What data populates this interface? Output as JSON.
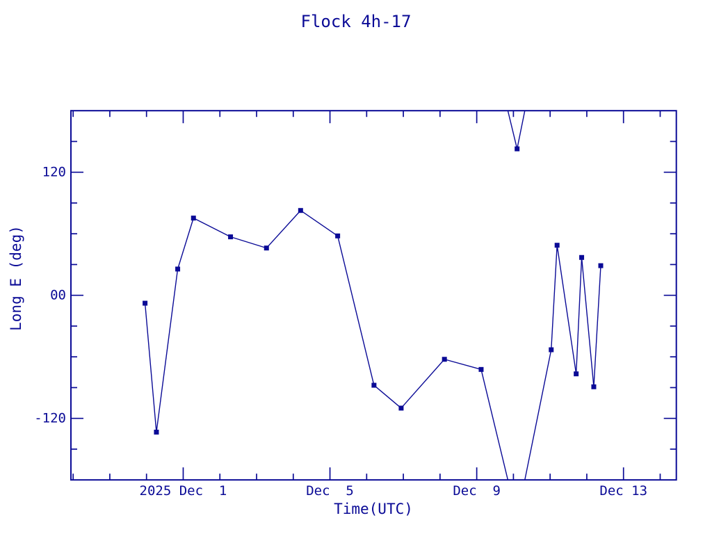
{
  "page": {
    "title": "Flock 4h-17"
  },
  "colors": {
    "ink": "#0A0A96",
    "background": "#FFFFFF"
  },
  "chart_data": {
    "type": "line",
    "title": "Flock 4h-17",
    "xlabel": "Time(UTC)",
    "ylabel": "Long E (deg)",
    "x_axis": {
      "unit": "day of December 2025 (UTC); 0 = Nov 30, -1 = Nov 29",
      "range": [
        -2.06,
        14.44
      ],
      "major_ticks": [
        {
          "day": 1,
          "label": "2025 Dec  1"
        },
        {
          "day": 5,
          "label": "Dec  5"
        },
        {
          "day": 9,
          "label": "Dec  9"
        },
        {
          "day": 13,
          "label": "Dec 13"
        }
      ],
      "minor_tick_step_days": 1
    },
    "y_axis": {
      "unit": "deg",
      "range": [
        -180,
        180
      ],
      "major_ticks": [
        {
          "value": 120,
          "label": "120"
        },
        {
          "value": 0,
          "label": "00"
        },
        {
          "value": -120,
          "label": "-120"
        }
      ],
      "minor_tick_step_deg": 30
    },
    "grid": false,
    "legend": false,
    "marker": "filled-square",
    "line_color": "#0A0A96",
    "wrap_longitude_at_deg": 180,
    "series": [
      {
        "name": "Flock 4h-17 longitude",
        "points_day_deg": [
          [
            -0.04,
            -7.7
          ],
          [
            0.27,
            -133.4
          ],
          [
            0.85,
            25.6
          ],
          [
            1.28,
            75.3
          ],
          [
            2.29,
            57.0
          ],
          [
            3.27,
            46.1
          ],
          [
            4.2,
            82.7
          ],
          [
            5.21,
            57.9
          ],
          [
            6.2,
            -87.7
          ],
          [
            6.94,
            -110.0
          ],
          [
            8.12,
            -62.4
          ],
          [
            9.12,
            -72.3
          ],
          [
            10.1,
            142.8
          ],
          [
            11.03,
            -53.1
          ],
          [
            11.19,
            48.8
          ],
          [
            11.71,
            -76.6
          ],
          [
            11.86,
            36.9
          ],
          [
            12.19,
            -89.2
          ],
          [
            12.38,
            28.9
          ]
        ]
      }
    ]
  }
}
